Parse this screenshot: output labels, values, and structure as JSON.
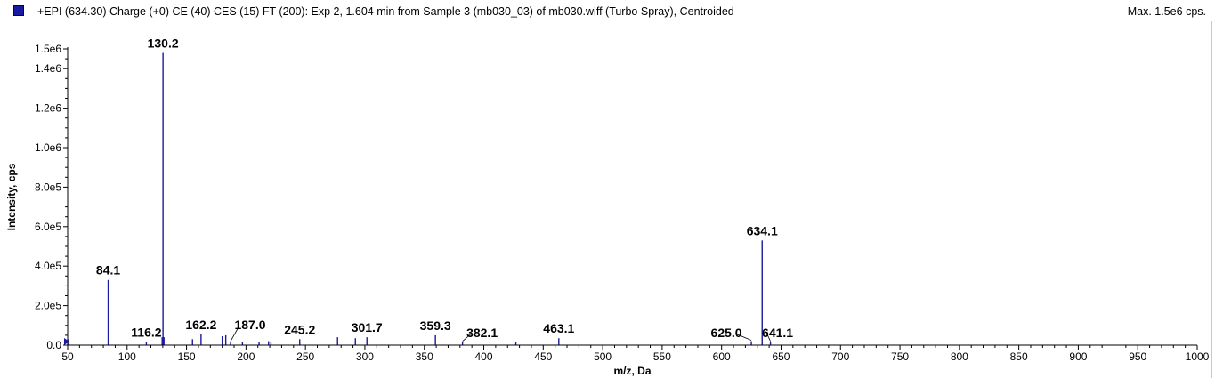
{
  "header": {
    "title": "+EPI (634.30) Charge (+0) CE (40) CES (15) FT (200): Exp 2, 1.604 min from Sample 3 (mb030_03) of mb030.wiff (Turbo Spray), Centroided",
    "max_label": "Max. 1.5e6 cps."
  },
  "colors": {
    "series": "#1a1aa0",
    "axis": "#000000",
    "border": "#c8c8c8"
  },
  "chart_data": {
    "type": "bar",
    "title": "+EPI (634.30) Charge (+0) CE (40) CES (15) FT (200): Exp 2, 1.604 min from Sample 3 (mb030_03) of mb030.wiff (Turbo Spray), Centroided",
    "xlabel": "m/z, Da",
    "ylabel": "Intensity, cps",
    "xlim": [
      50,
      1000
    ],
    "ylim": [
      0,
      1500000
    ],
    "x_ticks": [
      50,
      100,
      150,
      200,
      250,
      300,
      350,
      400,
      450,
      500,
      550,
      600,
      650,
      700,
      750,
      800,
      850,
      900,
      950,
      1000
    ],
    "x_tick_labels": [
      "50",
      "100",
      "150",
      "200",
      "250",
      "300",
      "350",
      "400",
      "450",
      "500",
      "550",
      "600",
      "650",
      "700",
      "750",
      "800",
      "850",
      "900",
      "950",
      "1000"
    ],
    "y_ticks": [
      0,
      200000,
      400000,
      600000,
      800000,
      1000000,
      1200000,
      1400000,
      1500000
    ],
    "y_tick_labels": [
      "0.0",
      "2.0e5",
      "4.0e5",
      "6.0e5",
      "8.0e5",
      "1.0e6",
      "1.2e6",
      "1.4e6",
      "1.5e6"
    ],
    "grid": false,
    "legend": "top-left",
    "peaks": [
      {
        "mz": 51.0,
        "intensity": 30000
      },
      {
        "mz": 84.1,
        "intensity": 330000
      },
      {
        "mz": 116.2,
        "intensity": 15000
      },
      {
        "mz": 129.5,
        "intensity": 40000
      },
      {
        "mz": 130.2,
        "intensity": 1480000
      },
      {
        "mz": 131.0,
        "intensity": 40000
      },
      {
        "mz": 155.0,
        "intensity": 30000
      },
      {
        "mz": 162.2,
        "intensity": 55000
      },
      {
        "mz": 180.0,
        "intensity": 45000
      },
      {
        "mz": 183.0,
        "intensity": 50000
      },
      {
        "mz": 187.0,
        "intensity": 15000
      },
      {
        "mz": 197.0,
        "intensity": 15000
      },
      {
        "mz": 211.0,
        "intensity": 18000
      },
      {
        "mz": 219.0,
        "intensity": 20000
      },
      {
        "mz": 221.0,
        "intensity": 15000
      },
      {
        "mz": 245.2,
        "intensity": 30000
      },
      {
        "mz": 277.0,
        "intensity": 40000
      },
      {
        "mz": 292.0,
        "intensity": 35000
      },
      {
        "mz": 301.7,
        "intensity": 40000
      },
      {
        "mz": 359.3,
        "intensity": 50000
      },
      {
        "mz": 382.1,
        "intensity": 15000
      },
      {
        "mz": 427.0,
        "intensity": 15000
      },
      {
        "mz": 463.1,
        "intensity": 35000
      },
      {
        "mz": 625.0,
        "intensity": 20000
      },
      {
        "mz": 634.1,
        "intensity": 530000
      },
      {
        "mz": 641.1,
        "intensity": 15000
      }
    ],
    "peak_labels": [
      {
        "text": "84.1",
        "mz": 84.1,
        "intensity": 330000
      },
      {
        "text": "116.2",
        "mz": 116.2,
        "intensity": 15000
      },
      {
        "text": "130.2",
        "mz": 130.2,
        "intensity": 1480000
      },
      {
        "text": "162.2",
        "mz": 162.2,
        "intensity": 55000
      },
      {
        "text": "187.0",
        "mz": 187.0,
        "intensity": 15000,
        "leader": true
      },
      {
        "text": "245.2",
        "mz": 245.2,
        "intensity": 30000
      },
      {
        "text": "301.7",
        "mz": 301.7,
        "intensity": 40000
      },
      {
        "text": "359.3",
        "mz": 359.3,
        "intensity": 50000
      },
      {
        "text": "382.1",
        "mz": 382.1,
        "intensity": 15000,
        "leader": true
      },
      {
        "text": "463.1",
        "mz": 463.1,
        "intensity": 35000
      },
      {
        "text": "625.0",
        "mz": 625.0,
        "intensity": 20000,
        "leader": true
      },
      {
        "text": "634.1",
        "mz": 634.1,
        "intensity": 530000
      },
      {
        "text": "641.1",
        "mz": 641.1,
        "intensity": 15000,
        "leader": true
      }
    ]
  }
}
